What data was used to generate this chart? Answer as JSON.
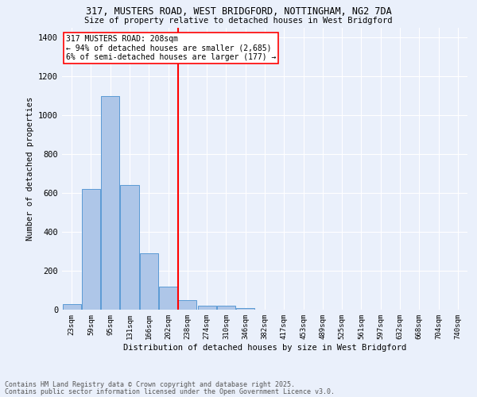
{
  "title1": "317, MUSTERS ROAD, WEST BRIDGFORD, NOTTINGHAM, NG2 7DA",
  "title2": "Size of property relative to detached houses in West Bridgford",
  "xlabel": "Distribution of detached houses by size in West Bridgford",
  "ylabel": "Number of detached properties",
  "bin_labels": [
    "23sqm",
    "59sqm",
    "95sqm",
    "131sqm",
    "166sqm",
    "202sqm",
    "238sqm",
    "274sqm",
    "310sqm",
    "346sqm",
    "382sqm",
    "417sqm",
    "453sqm",
    "489sqm",
    "525sqm",
    "561sqm",
    "597sqm",
    "632sqm",
    "668sqm",
    "704sqm",
    "740sqm"
  ],
  "bar_heights": [
    27,
    620,
    1100,
    640,
    290,
    120,
    48,
    22,
    20,
    10,
    0,
    0,
    0,
    0,
    0,
    0,
    0,
    0,
    0,
    0,
    0
  ],
  "bar_color": "#aec6e8",
  "bar_edge_color": "#5b9bd5",
  "vline_x": 5.5,
  "vline_color": "red",
  "annotation_text": "317 MUSTERS ROAD: 208sqm\n← 94% of detached houses are smaller (2,685)\n6% of semi-detached houses are larger (177) →",
  "annotation_box_color": "white",
  "annotation_box_edge": "red",
  "footer1": "Contains HM Land Registry data © Crown copyright and database right 2025.",
  "footer2": "Contains public sector information licensed under the Open Government Licence v3.0.",
  "bg_color": "#eaf0fb",
  "plot_bg_color": "#eaf0fb",
  "ylim": [
    0,
    1450
  ],
  "yticks": [
    0,
    200,
    400,
    600,
    800,
    1000,
    1200,
    1400
  ]
}
